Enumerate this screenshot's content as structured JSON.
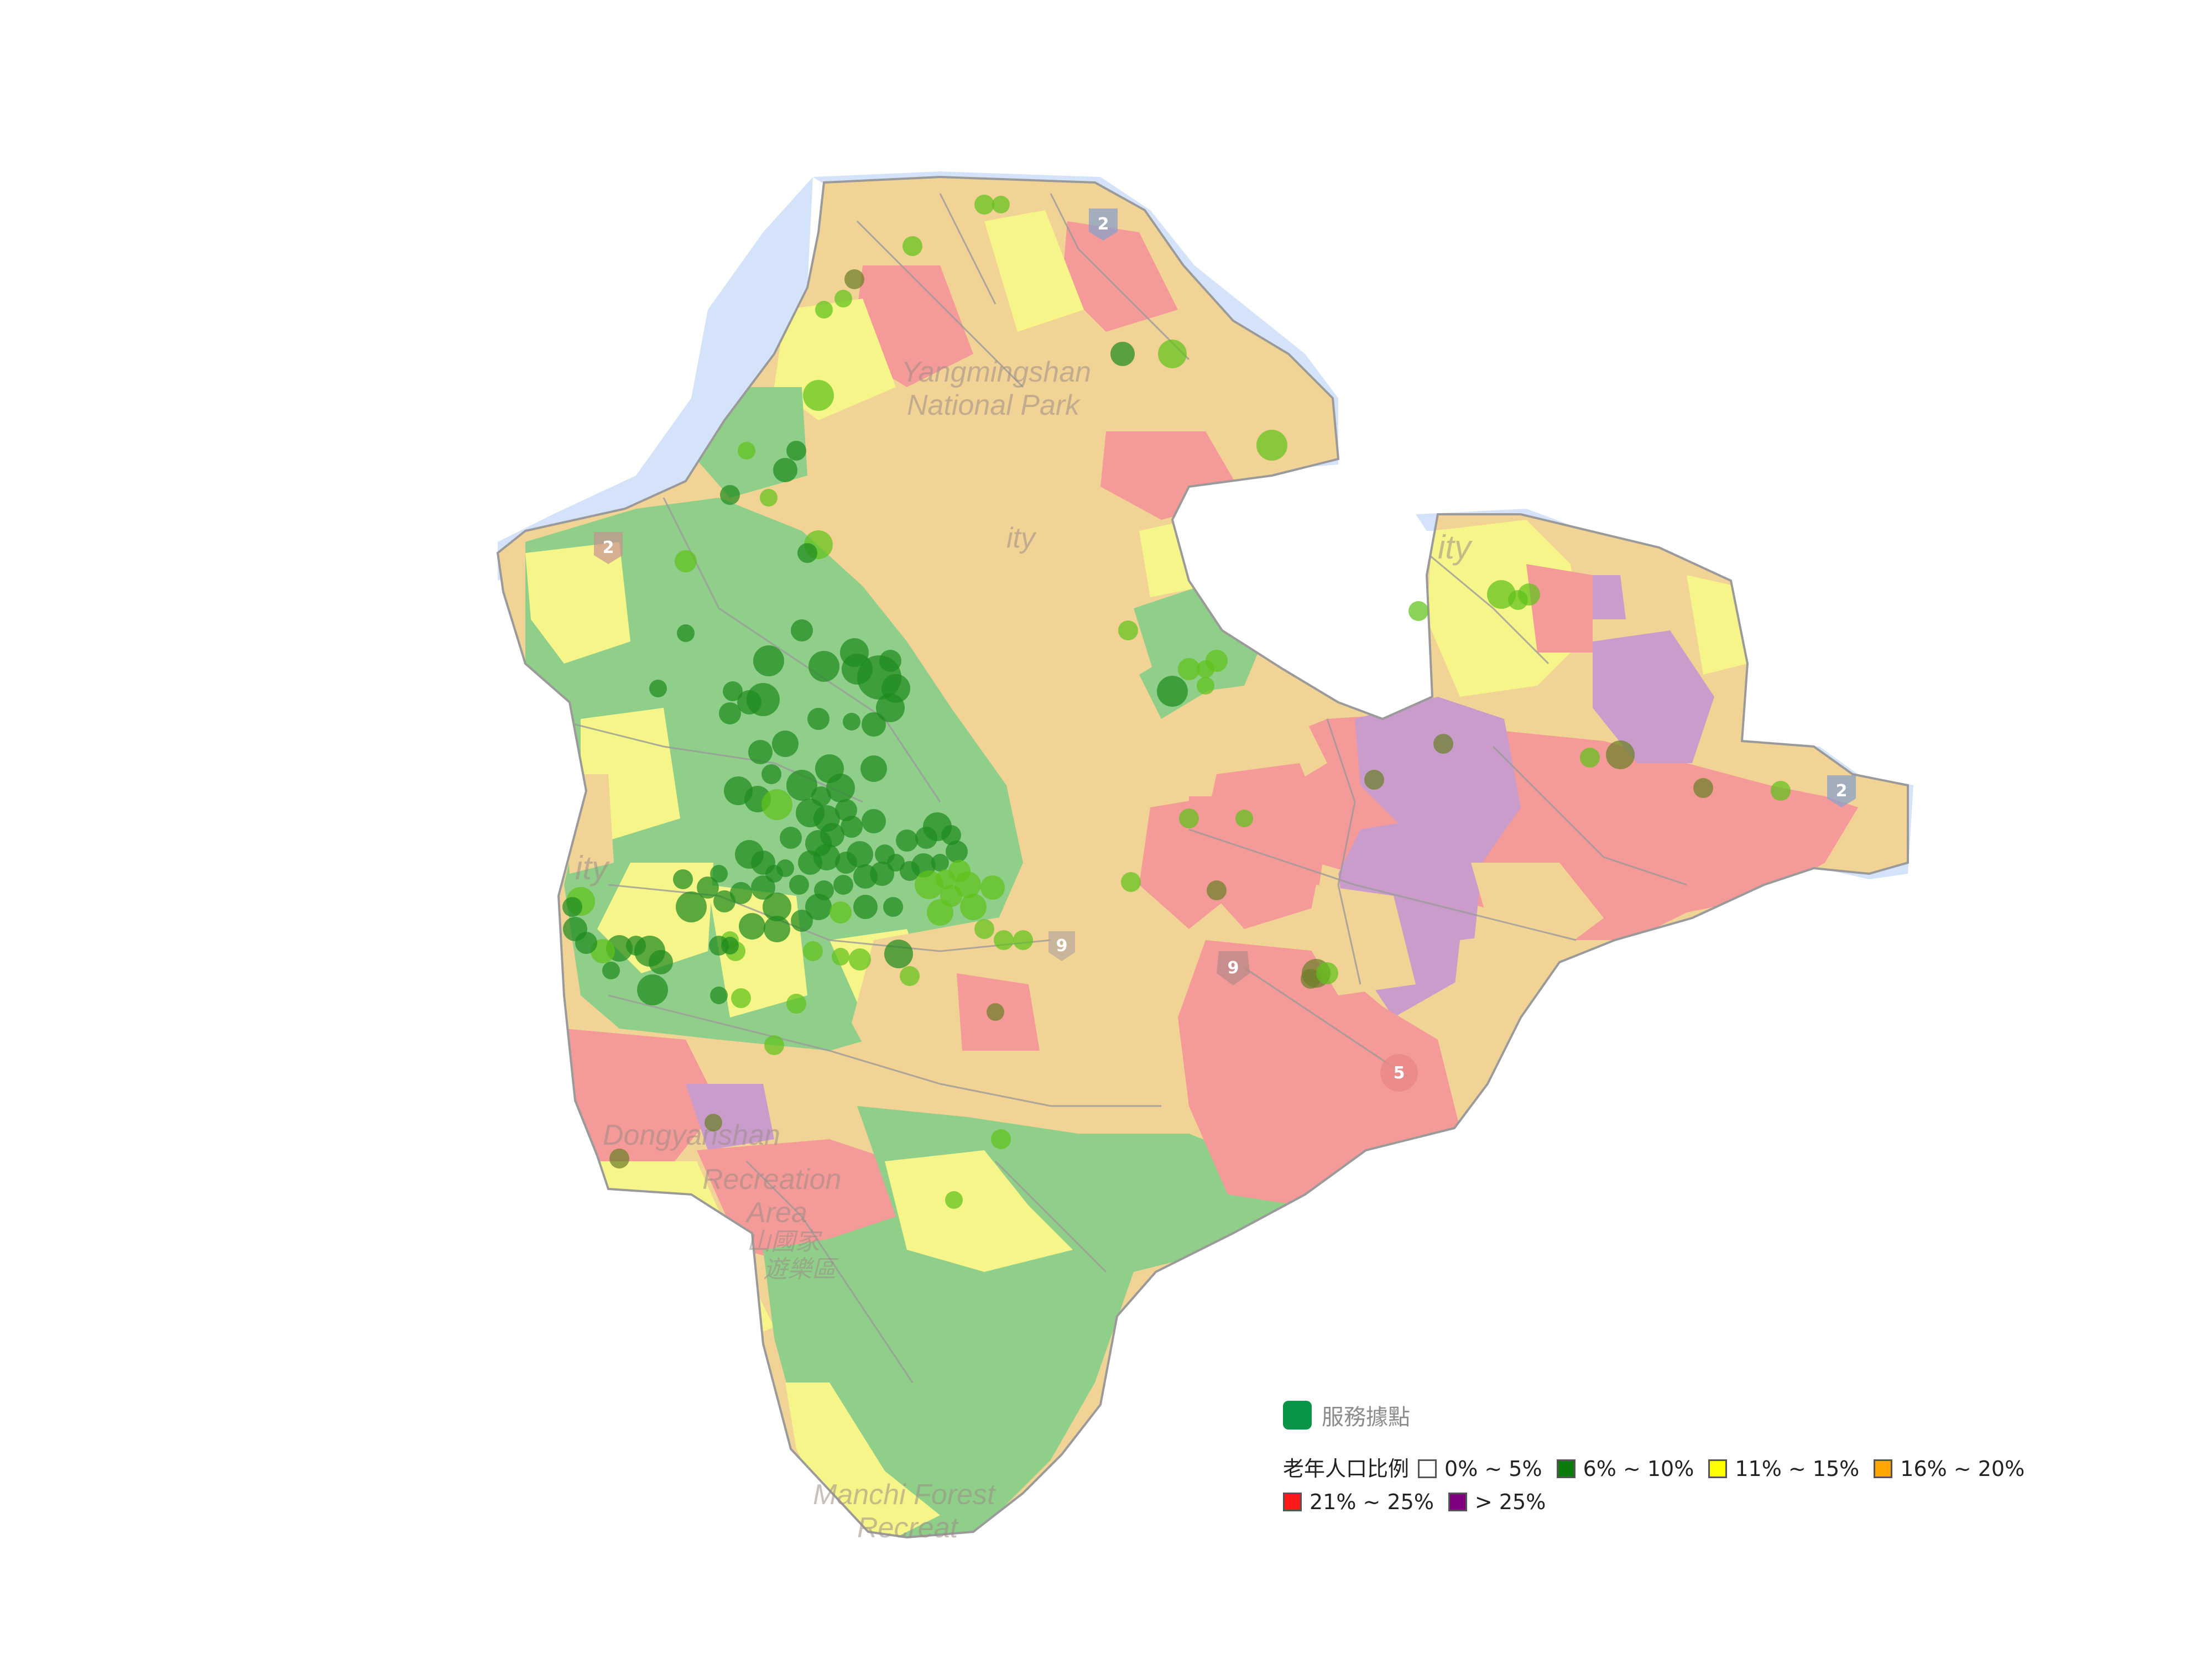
{
  "map": {
    "basemap_labels": [
      "Yangmingshan",
      "National Park",
      "Dongyanshan",
      "Recreation",
      "Area",
      "山國家",
      "遊樂區",
      "Manchi Forest",
      "Recreat",
      "ity",
      "ity",
      "ity"
    ],
    "road_shields": [
      "9",
      "5",
      "2",
      "2",
      "2",
      "9"
    ],
    "region_palette": {
      "0-5": "#ffffff",
      "6-10": "#8fcf8a",
      "11-15": "#f6f58a",
      "16-20": "#f2d396",
      "21-25": "#f49a98",
      ">25": "#c99ccb"
    },
    "service_point_colors": {
      "dark": "#1f8a1f",
      "light": "#5fc21a",
      "mixed": "#6c7f28"
    }
  },
  "legend": {
    "service_label": "服務據點",
    "service_color": "#0a9447",
    "ratio_title": "老年人口比例",
    "classes": [
      {
        "label": "0% ~ 5%",
        "color": "#ffffff"
      },
      {
        "label": "6% ~ 10%",
        "color": "#0d7a0d"
      },
      {
        "label": "11% ~ 15%",
        "color": "#ffff00"
      },
      {
        "label": "16% ~ 20%",
        "color": "#ffa500"
      },
      {
        "label": "21% ~ 25%",
        "color": "#ff1a1a"
      },
      {
        "label": "> 25%",
        "color": "#800080"
      }
    ]
  }
}
